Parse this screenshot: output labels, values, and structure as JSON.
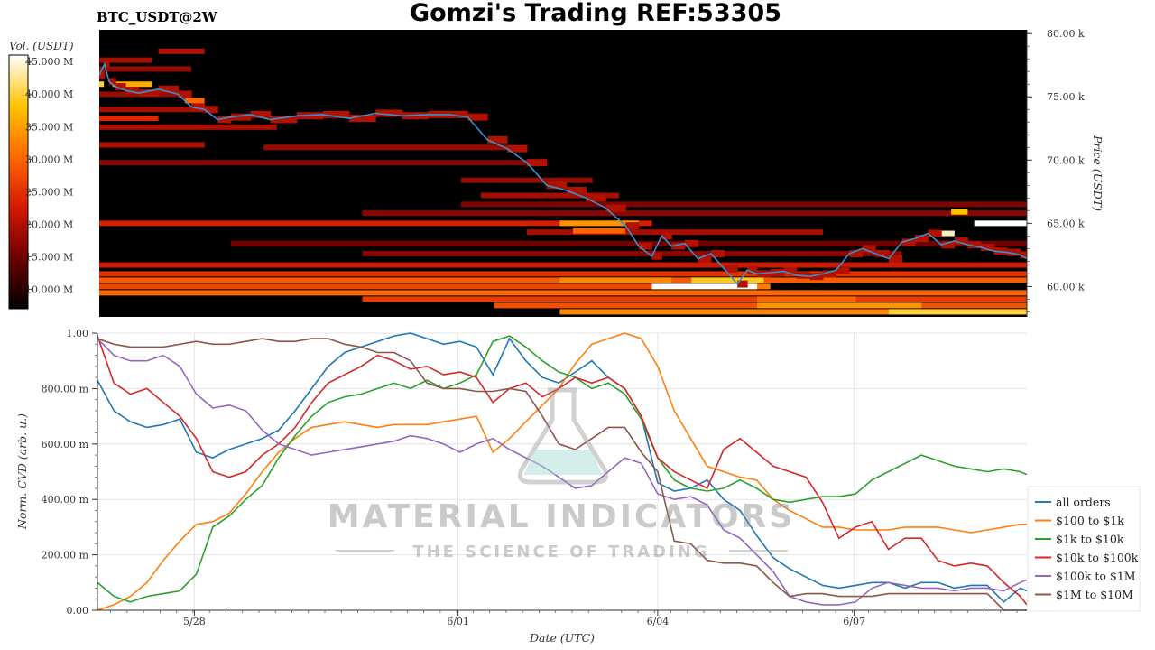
{
  "header": {
    "ticker": "BTC_USDT@2W",
    "title": "Gomzi's Trading REF:53305"
  },
  "watermark": {
    "line1": "MATERIAL INDICATORS",
    "line2": "THE SCIENCE OF TRADING"
  },
  "colors": {
    "all_orders": "#1f77b4",
    "usd_100_1k": "#ff7f0e",
    "usd_1k_10k": "#2ca02c",
    "usd_10k_100k": "#d62728",
    "usd_100k_1m": "#9467bd",
    "usd_1m_10m": "#8c564b",
    "price_line": "#3a8fd0",
    "heatmap_bg": "#000000"
  },
  "chart_data": [
    {
      "type": "heatmap",
      "colorbar": {
        "title": "Vol. (USDT)",
        "ticks": [
          "45.000 M",
          "40.000 M",
          "35.000 M",
          "30.000 M",
          "25.000 M",
          "20.000 M",
          "15.000 M",
          "10.000 M"
        ],
        "tick_values": [
          45,
          40,
          35,
          30,
          25,
          20,
          15,
          10
        ],
        "range": [
          7,
          46
        ],
        "colorscale": [
          "#000000",
          "#6e0000",
          "#d41a00",
          "#ff6a00",
          "#ffc400",
          "#ffffff"
        ]
      },
      "ylabel": "Price (USDT)",
      "yticks": [
        "80.00 k",
        "75.00 k",
        "70.00 k",
        "65.00 k",
        "60.00 k"
      ],
      "ytick_values": [
        80,
        75,
        70,
        65,
        60
      ],
      "ylim": [
        57.6,
        80.3
      ],
      "xlim": [
        0,
        14.1
      ],
      "price_series": {
        "x": [
          0,
          0.08,
          0.15,
          0.25,
          0.4,
          0.6,
          0.9,
          1.2,
          1.4,
          1.6,
          1.8,
          2.0,
          2.3,
          2.6,
          3.0,
          3.4,
          3.8,
          4.2,
          4.6,
          5.0,
          5.3,
          5.6,
          5.9,
          6.2,
          6.5,
          6.8,
          7.1,
          7.4,
          7.7,
          8.0,
          8.2,
          8.4,
          8.55,
          8.7,
          8.9,
          9.1,
          9.3,
          9.5,
          9.7,
          9.85,
          10.0,
          10.2,
          10.4,
          10.6,
          10.8,
          11.0,
          11.2,
          11.4,
          11.6,
          11.8,
          12.0,
          12.2,
          12.4,
          12.6,
          12.8,
          13.0,
          13.2,
          13.4,
          13.6,
          13.8,
          14.0,
          14.1
        ],
        "y": [
          76.7,
          77.6,
          76.2,
          75.8,
          75.5,
          75.3,
          75.6,
          75.2,
          74.2,
          74.0,
          73.2,
          73.4,
          73.6,
          73.2,
          73.5,
          73.6,
          73.3,
          73.7,
          73.5,
          73.6,
          73.6,
          73.4,
          71.6,
          70.9,
          69.8,
          68.0,
          67.6,
          67.0,
          66.2,
          64.8,
          63.2,
          62.4,
          64.0,
          63.2,
          63.4,
          62.2,
          62.6,
          61.4,
          60.2,
          61.3,
          61.0,
          61.1,
          61.2,
          60.9,
          60.8,
          61.0,
          61.3,
          62.6,
          63.0,
          62.6,
          62.2,
          63.5,
          63.8,
          64.2,
          63.3,
          63.6,
          63.3,
          63.1,
          62.8,
          62.7,
          62.5,
          62.2
        ]
      },
      "level_bands": [
        {
          "price": 78.6,
          "x_start": 0.9,
          "x_end": 1.6,
          "vol": 20
        },
        {
          "price": 77.9,
          "x_start": 0,
          "x_end": 0.8,
          "vol": 19
        },
        {
          "price": 77.2,
          "x_start": 0,
          "x_end": 1.4,
          "vol": 18
        },
        {
          "price": 75.2,
          "x_start": 0,
          "x_end": 1.3,
          "vol": 18
        },
        {
          "price": 74.0,
          "x_start": 0,
          "x_end": 1.7,
          "vol": 19
        },
        {
          "price": 73.3,
          "x_start": 0,
          "x_end": 0.9,
          "vol": 24
        },
        {
          "price": 72.6,
          "x_start": 0,
          "x_end": 2.7,
          "vol": 19
        },
        {
          "price": 71.2,
          "x_start": 0,
          "x_end": 1.6,
          "vol": 20
        },
        {
          "price": 71.0,
          "x_start": 2.5,
          "x_end": 6.2,
          "vol": 18
        },
        {
          "price": 69.8,
          "x_start": 0,
          "x_end": 6.7,
          "vol": 17
        },
        {
          "price": 68.4,
          "x_start": 5.5,
          "x_end": 7.5,
          "vol": 18
        },
        {
          "price": 67.2,
          "x_start": 5.8,
          "x_end": 7.9,
          "vol": 19
        },
        {
          "price": 66.5,
          "x_start": 5.5,
          "x_end": 14.1,
          "vol": 16
        },
        {
          "price": 65.8,
          "x_start": 4.0,
          "x_end": 14.1,
          "vol": 17
        },
        {
          "price": 65.0,
          "x_start": 0,
          "x_end": 8.4,
          "vol": 23
        },
        {
          "price": 64.3,
          "x_start": 6.5,
          "x_end": 11.0,
          "vol": 19
        },
        {
          "price": 63.4,
          "x_start": 2.0,
          "x_end": 14.1,
          "vol": 15
        },
        {
          "price": 62.6,
          "x_start": 4.0,
          "x_end": 12.2,
          "vol": 17
        },
        {
          "price": 61.7,
          "x_start": 0,
          "x_end": 14.1,
          "vol": 22
        },
        {
          "price": 61.0,
          "x_start": 0,
          "x_end": 14.1,
          "vol": 25
        },
        {
          "price": 60.5,
          "x_start": 0,
          "x_end": 14.1,
          "vol": 29
        },
        {
          "price": 60.0,
          "x_start": 0,
          "x_end": 8.5,
          "vol": 27
        },
        {
          "price": 60.0,
          "x_start": 8.5,
          "x_end": 10.2,
          "vol": 32
        },
        {
          "price": 59.5,
          "x_start": 0,
          "x_end": 14.1,
          "vol": 30
        },
        {
          "price": 59.0,
          "x_start": 4.0,
          "x_end": 14.1,
          "vol": 26
        },
        {
          "price": 58.5,
          "x_start": 6.0,
          "x_end": 14.1,
          "vol": 28
        },
        {
          "price": 58.0,
          "x_start": 7.0,
          "x_end": 14.1,
          "vol": 33
        }
      ],
      "hotspots": [
        {
          "price": 60.0,
          "x_start": 8.4,
          "x_end": 10.0,
          "vol": 46
        },
        {
          "price": 60.5,
          "x_start": 9.0,
          "x_end": 10.1,
          "vol": 39
        },
        {
          "price": 60.5,
          "x_start": 7.0,
          "x_end": 8.7,
          "vol": 33
        },
        {
          "price": 65.0,
          "x_start": 7.0,
          "x_end": 8.2,
          "vol": 34
        },
        {
          "price": 64.4,
          "x_start": 7.2,
          "x_end": 8.0,
          "vol": 30
        },
        {
          "price": 58.0,
          "x_start": 12.0,
          "x_end": 14.1,
          "vol": 40
        },
        {
          "price": 58.5,
          "x_start": 10.0,
          "x_end": 12.5,
          "vol": 34
        },
        {
          "price": 59.0,
          "x_start": 10.0,
          "x_end": 11.5,
          "vol": 30
        },
        {
          "price": 65.0,
          "x_start": 13.3,
          "x_end": 14.1,
          "vol": 46
        },
        {
          "price": 65.9,
          "x_start": 12.95,
          "x_end": 13.2,
          "vol": 38
        },
        {
          "price": 64.2,
          "x_start": 12.8,
          "x_end": 13.0,
          "vol": 44
        },
        {
          "price": 76.0,
          "x_start": 0.2,
          "x_end": 0.8,
          "vol": 36
        },
        {
          "price": 76.0,
          "x_start": 0.0,
          "x_end": 0.07,
          "vol": 40
        },
        {
          "price": 74.7,
          "x_start": 1.3,
          "x_end": 1.6,
          "vol": 30
        }
      ]
    },
    {
      "type": "line",
      "xlabel": "Date (UTC)",
      "ylabel": "Norm. CVD (arb. u.)",
      "xticks": [
        "5/28",
        "6/01",
        "6/04",
        "6/07"
      ],
      "xtick_values": [
        1.47,
        5.47,
        8.5,
        11.48
      ],
      "yticks": [
        "1.00",
        "800.00 m",
        "600.00 m",
        "400.00 m",
        "200.00 m",
        "0.00"
      ],
      "ytick_values": [
        1.0,
        0.8,
        0.6,
        0.4,
        0.2,
        0.0
      ],
      "ylim": [
        0,
        1.0
      ],
      "xlim": [
        0,
        14.1
      ],
      "grid": true,
      "legend_position": "right",
      "x": [
        0,
        0.25,
        0.5,
        0.75,
        1.0,
        1.25,
        1.5,
        1.75,
        2.0,
        2.25,
        2.5,
        2.75,
        3.0,
        3.25,
        3.5,
        3.75,
        4.0,
        4.25,
        4.5,
        4.75,
        5.0,
        5.25,
        5.5,
        5.75,
        6.0,
        6.25,
        6.5,
        6.75,
        7.0,
        7.25,
        7.5,
        7.75,
        8.0,
        8.25,
        8.5,
        8.75,
        9.0,
        9.25,
        9.5,
        9.75,
        10.0,
        10.25,
        10.5,
        10.75,
        11.0,
        11.25,
        11.5,
        11.75,
        12.0,
        12.25,
        12.5,
        12.75,
        13.0,
        13.25,
        13.5,
        13.75,
        14.0,
        14.1
      ],
      "series": [
        {
          "name": "all orders",
          "color": "#1f77b4",
          "values": [
            0.83,
            0.72,
            0.68,
            0.66,
            0.67,
            0.69,
            0.57,
            0.55,
            0.58,
            0.6,
            0.62,
            0.65,
            0.72,
            0.8,
            0.88,
            0.93,
            0.95,
            0.97,
            0.99,
            1.0,
            0.98,
            0.96,
            0.97,
            0.95,
            0.85,
            0.98,
            0.9,
            0.84,
            0.82,
            0.86,
            0.9,
            0.84,
            0.8,
            0.7,
            0.46,
            0.43,
            0.44,
            0.47,
            0.4,
            0.36,
            0.27,
            0.19,
            0.15,
            0.12,
            0.09,
            0.08,
            0.09,
            0.1,
            0.1,
            0.08,
            0.1,
            0.1,
            0.08,
            0.09,
            0.09,
            0.03,
            0.08,
            0.07
          ]
        },
        {
          "name": "$100 to $1k",
          "color": "#ff7f0e",
          "values": [
            0.0,
            0.02,
            0.05,
            0.1,
            0.18,
            0.25,
            0.31,
            0.32,
            0.35,
            0.42,
            0.5,
            0.57,
            0.62,
            0.66,
            0.67,
            0.68,
            0.67,
            0.66,
            0.67,
            0.67,
            0.67,
            0.68,
            0.69,
            0.7,
            0.57,
            0.62,
            0.68,
            0.74,
            0.8,
            0.89,
            0.96,
            0.98,
            1.0,
            0.98,
            0.88,
            0.72,
            0.62,
            0.52,
            0.5,
            0.48,
            0.47,
            0.4,
            0.36,
            0.33,
            0.3,
            0.3,
            0.29,
            0.29,
            0.29,
            0.3,
            0.3,
            0.3,
            0.29,
            0.28,
            0.29,
            0.3,
            0.31,
            0.31
          ]
        },
        {
          "name": "$1k to $10k",
          "color": "#2ca02c",
          "values": [
            0.1,
            0.05,
            0.03,
            0.05,
            0.06,
            0.07,
            0.13,
            0.3,
            0.34,
            0.4,
            0.45,
            0.55,
            0.63,
            0.7,
            0.75,
            0.77,
            0.78,
            0.8,
            0.82,
            0.8,
            0.83,
            0.8,
            0.82,
            0.85,
            0.97,
            0.99,
            0.95,
            0.9,
            0.86,
            0.84,
            0.8,
            0.82,
            0.78,
            0.69,
            0.55,
            0.47,
            0.44,
            0.43,
            0.44,
            0.47,
            0.44,
            0.4,
            0.39,
            0.4,
            0.41,
            0.41,
            0.42,
            0.47,
            0.5,
            0.53,
            0.56,
            0.54,
            0.52,
            0.51,
            0.5,
            0.51,
            0.5,
            0.49
          ]
        },
        {
          "name": "$10k to $100k",
          "color": "#d62728",
          "values": [
            0.99,
            0.82,
            0.78,
            0.8,
            0.75,
            0.7,
            0.62,
            0.5,
            0.48,
            0.5,
            0.56,
            0.6,
            0.66,
            0.75,
            0.82,
            0.85,
            0.88,
            0.92,
            0.9,
            0.87,
            0.88,
            0.85,
            0.86,
            0.84,
            0.75,
            0.8,
            0.82,
            0.77,
            0.8,
            0.84,
            0.82,
            0.84,
            0.8,
            0.7,
            0.55,
            0.5,
            0.47,
            0.44,
            0.58,
            0.62,
            0.57,
            0.52,
            0.5,
            0.48,
            0.39,
            0.26,
            0.3,
            0.32,
            0.22,
            0.26,
            0.26,
            0.18,
            0.16,
            0.17,
            0.16,
            0.1,
            0.05,
            0.02
          ]
        },
        {
          "name": "$100k to $1M",
          "color": "#9467bd",
          "values": [
            0.98,
            0.92,
            0.9,
            0.9,
            0.92,
            0.88,
            0.78,
            0.73,
            0.74,
            0.72,
            0.65,
            0.6,
            0.58,
            0.56,
            0.57,
            0.58,
            0.59,
            0.6,
            0.61,
            0.63,
            0.62,
            0.6,
            0.57,
            0.6,
            0.62,
            0.58,
            0.55,
            0.52,
            0.48,
            0.44,
            0.45,
            0.5,
            0.55,
            0.53,
            0.42,
            0.4,
            0.41,
            0.38,
            0.29,
            0.26,
            0.2,
            0.14,
            0.05,
            0.03,
            0.02,
            0.02,
            0.03,
            0.08,
            0.1,
            0.09,
            0.08,
            0.08,
            0.07,
            0.08,
            0.08,
            0.07,
            0.1,
            0.11
          ]
        },
        {
          "name": "$1M to $10M",
          "color": "#8c564b",
          "values": [
            0.98,
            0.96,
            0.95,
            0.95,
            0.95,
            0.96,
            0.97,
            0.96,
            0.96,
            0.97,
            0.98,
            0.97,
            0.97,
            0.98,
            0.98,
            0.96,
            0.95,
            0.93,
            0.93,
            0.9,
            0.82,
            0.8,
            0.8,
            0.79,
            0.79,
            0.8,
            0.79,
            0.7,
            0.6,
            0.58,
            0.62,
            0.66,
            0.66,
            0.57,
            0.5,
            0.25,
            0.24,
            0.18,
            0.17,
            0.17,
            0.16,
            0.1,
            0.05,
            0.06,
            0.06,
            0.05,
            0.05,
            0.05,
            0.06,
            0.06,
            0.06,
            0.06,
            0.06,
            0.06,
            0.06,
            0.0,
            0.0,
            0.0
          ]
        }
      ]
    }
  ]
}
